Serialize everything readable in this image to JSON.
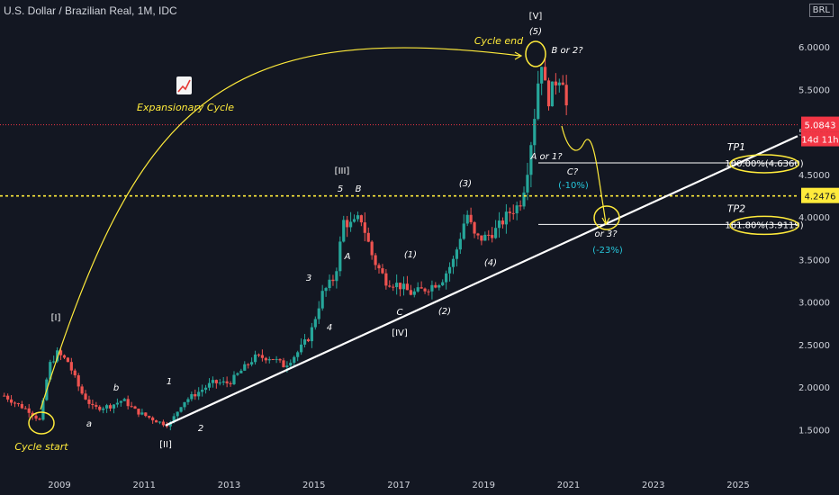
{
  "header": {
    "title": "U.S. Dollar / Brazilian Real, 1M, IDC"
  },
  "currency_badge": "BRL",
  "chart_data": {
    "type": "candlestick",
    "title": "U.S. Dollar / Brazilian Real, 1M, IDC",
    "x_ticks": [
      "2009",
      "2011",
      "2013",
      "2015",
      "2017",
      "2019",
      "2021",
      "2023",
      "2025"
    ],
    "y_ticks": [
      "6.0000",
      "5.5000",
      "5.0000",
      "4.5000",
      "4.0000",
      "3.5000",
      "3.0000",
      "2.5000",
      "2.0000",
      "1.5000"
    ],
    "ylim": [
      1.05,
      6.55
    ],
    "xlim": [
      2007.6,
      2026.4
    ],
    "price_path": [
      [
        2007.7,
        1.9
      ],
      [
        2008.0,
        1.8
      ],
      [
        2008.3,
        1.72
      ],
      [
        2008.55,
        1.6
      ],
      [
        2008.75,
        2.25
      ],
      [
        2008.95,
        2.4
      ],
      [
        2009.2,
        2.3
      ],
      [
        2009.5,
        1.95
      ],
      [
        2009.8,
        1.75
      ],
      [
        2010.2,
        1.78
      ],
      [
        2010.5,
        1.85
      ],
      [
        2010.8,
        1.72
      ],
      [
        2011.0,
        1.67
      ],
      [
        2011.4,
        1.58
      ],
      [
        2011.6,
        1.56
      ],
      [
        2011.9,
        1.82
      ],
      [
        2012.3,
        1.95
      ],
      [
        2012.6,
        2.05
      ],
      [
        2013.0,
        2.05
      ],
      [
        2013.3,
        2.2
      ],
      [
        2013.6,
        2.35
      ],
      [
        2014.0,
        2.35
      ],
      [
        2014.3,
        2.25
      ],
      [
        2014.6,
        2.4
      ],
      [
        2014.9,
        2.6
      ],
      [
        2015.2,
        3.1
      ],
      [
        2015.5,
        3.3
      ],
      [
        2015.7,
        3.95
      ],
      [
        2015.9,
        3.9
      ],
      [
        2016.1,
        4.0
      ],
      [
        2016.4,
        3.5
      ],
      [
        2016.7,
        3.25
      ],
      [
        2017.0,
        3.2
      ],
      [
        2017.3,
        3.1
      ],
      [
        2017.6,
        3.15
      ],
      [
        2018.0,
        3.25
      ],
      [
        2018.3,
        3.5
      ],
      [
        2018.6,
        4.05
      ],
      [
        2018.8,
        3.75
      ],
      [
        2019.0,
        3.75
      ],
      [
        2019.3,
        3.85
      ],
      [
        2019.6,
        4.05
      ],
      [
        2019.85,
        4.15
      ],
      [
        2020.0,
        4.45
      ],
      [
        2020.2,
        5.2
      ],
      [
        2020.35,
        5.9
      ],
      [
        2020.5,
        5.35
      ],
      [
        2020.7,
        5.6
      ],
      [
        2020.85,
        5.7
      ],
      [
        2021.0,
        5.1
      ]
    ],
    "horizontal_levels": [
      {
        "label": "5.0843",
        "value": 5.0843,
        "color": "#f23645",
        "style": "dotted"
      },
      {
        "label": "4.2476",
        "value": 4.2476,
        "color": "#ffeb3b",
        "style": "dotted"
      }
    ],
    "price_label_current": "5.0843",
    "price_label_countdown": "14d 11h",
    "price_label_level": "4.2476",
    "targets": [
      {
        "name": "TP1",
        "value": 4.636,
        "text": "100.00%(4.6360)"
      },
      {
        "name": "TP2",
        "value": 3.9119,
        "text": "161.80%(3.9119)"
      }
    ],
    "annotations": {
      "wave_major": [
        "[I]",
        "[II]",
        "[III]",
        "[IV]",
        "[V]"
      ],
      "wave_minor": [
        "1",
        "2",
        "3",
        "4",
        "5",
        "a",
        "b",
        "A",
        "B",
        "C"
      ],
      "wave_paren": [
        "(1)",
        "(2)",
        "(3)",
        "(4)",
        "(5)"
      ],
      "notes": [
        "Cycle start",
        "Cycle end",
        "Expansionary Cycle",
        "B or 2?",
        "A or 1?",
        "C?",
        "(-10%)",
        "or 3?",
        "(-23%)"
      ]
    },
    "trendline": {
      "from": [
        2011.5,
        1.55
      ],
      "to": [
        2026.4,
        4.95
      ]
    },
    "grid": false,
    "colors": {
      "up": "#26a69a",
      "down": "#ef5350",
      "annotation": "#ffeb3b",
      "projection": "#26c6da"
    }
  }
}
